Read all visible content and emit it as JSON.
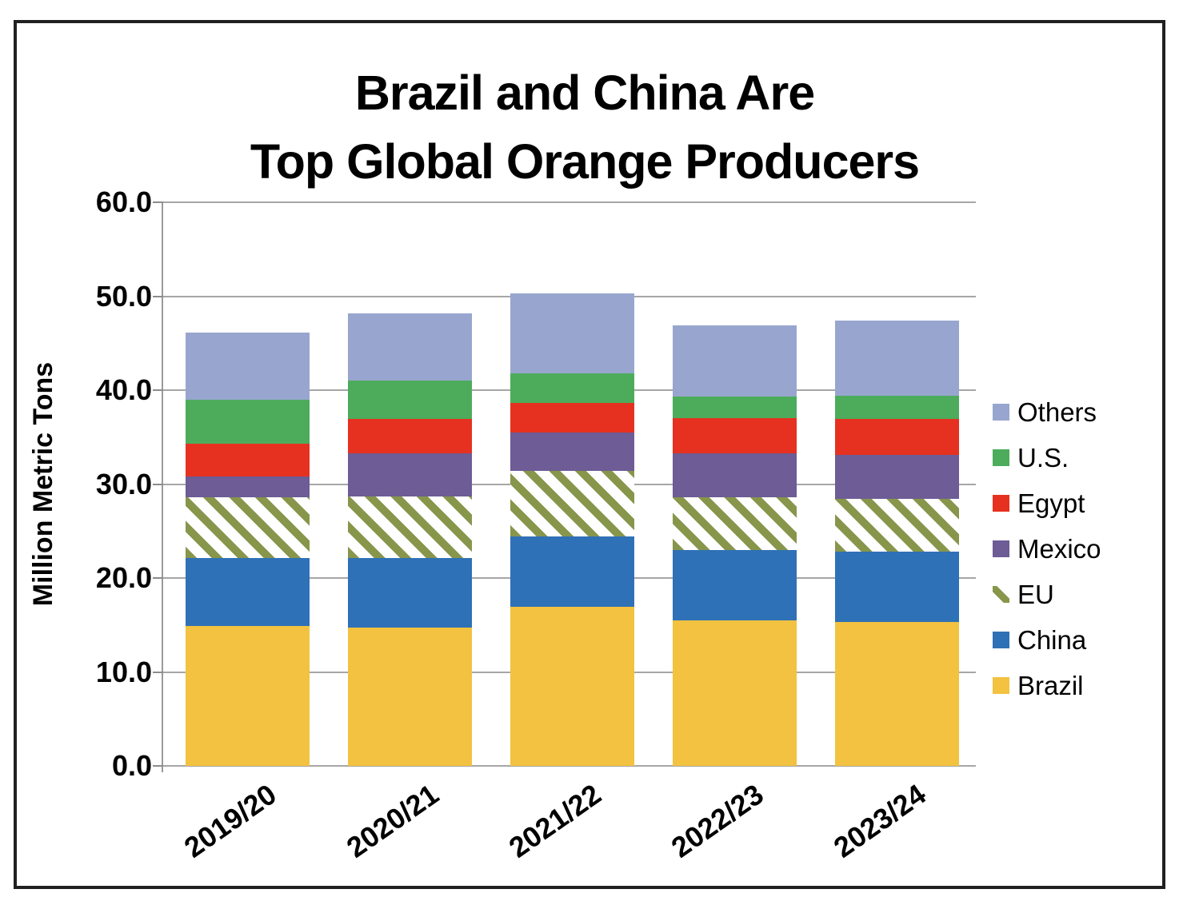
{
  "title": {
    "line1": "Brazil and China Are",
    "line2": "Top Global Orange Producers"
  },
  "chart_data": {
    "type": "bar",
    "stacked": true,
    "title": "Brazil and China Are Top Global Orange Producers",
    "ylabel": "Million Metric Tons",
    "xlabel": "",
    "ylim": [
      0,
      60
    ],
    "ytick_step": 10,
    "ytick_labels": [
      "0.0",
      "10.0",
      "20.0",
      "30.0",
      "40.0",
      "50.0",
      "60.0"
    ],
    "grid": true,
    "legend_position": "right",
    "categories": [
      "2019/20",
      "2020/21",
      "2021/22",
      "2022/23",
      "2023/24"
    ],
    "series": [
      {
        "name": "Brazil",
        "color": "#f2c240",
        "pattern": "solid",
        "values": [
          14.9,
          14.7,
          16.9,
          15.5,
          15.3
        ]
      },
      {
        "name": "China",
        "color": "#2f71b6",
        "pattern": "solid",
        "values": [
          7.2,
          7.4,
          7.5,
          7.5,
          7.5
        ]
      },
      {
        "name": "EU",
        "color": "#87964b",
        "pattern": "diagonal-stripes",
        "values": [
          6.5,
          6.6,
          7.0,
          5.6,
          5.6
        ]
      },
      {
        "name": "Mexico",
        "color": "#6d5c95",
        "pattern": "solid",
        "values": [
          2.2,
          4.6,
          4.1,
          4.7,
          4.7
        ]
      },
      {
        "name": "Egypt",
        "color": "#e63120",
        "pattern": "solid",
        "values": [
          3.5,
          3.6,
          3.1,
          3.7,
          3.8
        ]
      },
      {
        "name": "U.S.",
        "color": "#4cac5c",
        "pattern": "solid",
        "values": [
          4.7,
          4.1,
          3.2,
          2.3,
          2.5
        ]
      },
      {
        "name": "Others",
        "color": "#98a6cf",
        "pattern": "solid",
        "values": [
          7.1,
          7.2,
          8.5,
          7.6,
          8.0
        ]
      }
    ],
    "totals": [
      46.1,
      48.2,
      50.3,
      46.9,
      47.4
    ],
    "legend_order": [
      "Others",
      "U.S.",
      "Egypt",
      "Mexico",
      "EU",
      "China",
      "Brazil"
    ]
  }
}
